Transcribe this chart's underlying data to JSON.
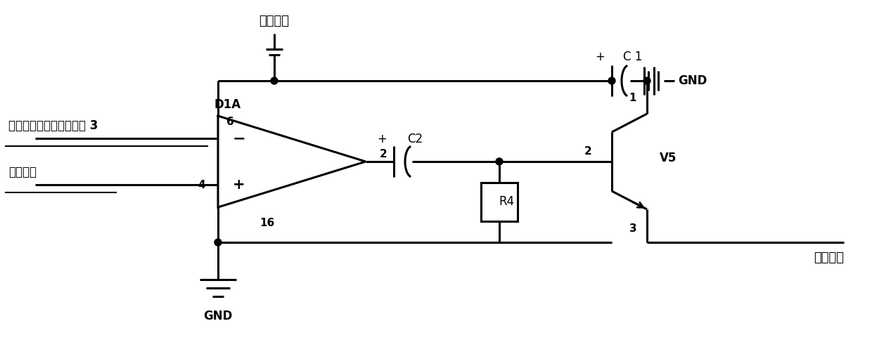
{
  "bg_color": "white",
  "line_color": "black",
  "lw": 2.2,
  "lw_thin": 1.2,
  "labels": {
    "power": "电源电压",
    "input": "热电池组输出分压后电压 3",
    "ref": "参考电压",
    "gnd1": "GND",
    "gnd2": "GND",
    "activate": "激活信号",
    "D1A": "D1A",
    "pin6": "6",
    "pin16": "16",
    "pin2_out": "2",
    "pin4": "4",
    "pin1_tr": "1",
    "pin2_tr": "2",
    "pin3_tr": "3",
    "C1": "C 1",
    "C2": "C2",
    "R4": "R4",
    "V5": "V5"
  }
}
